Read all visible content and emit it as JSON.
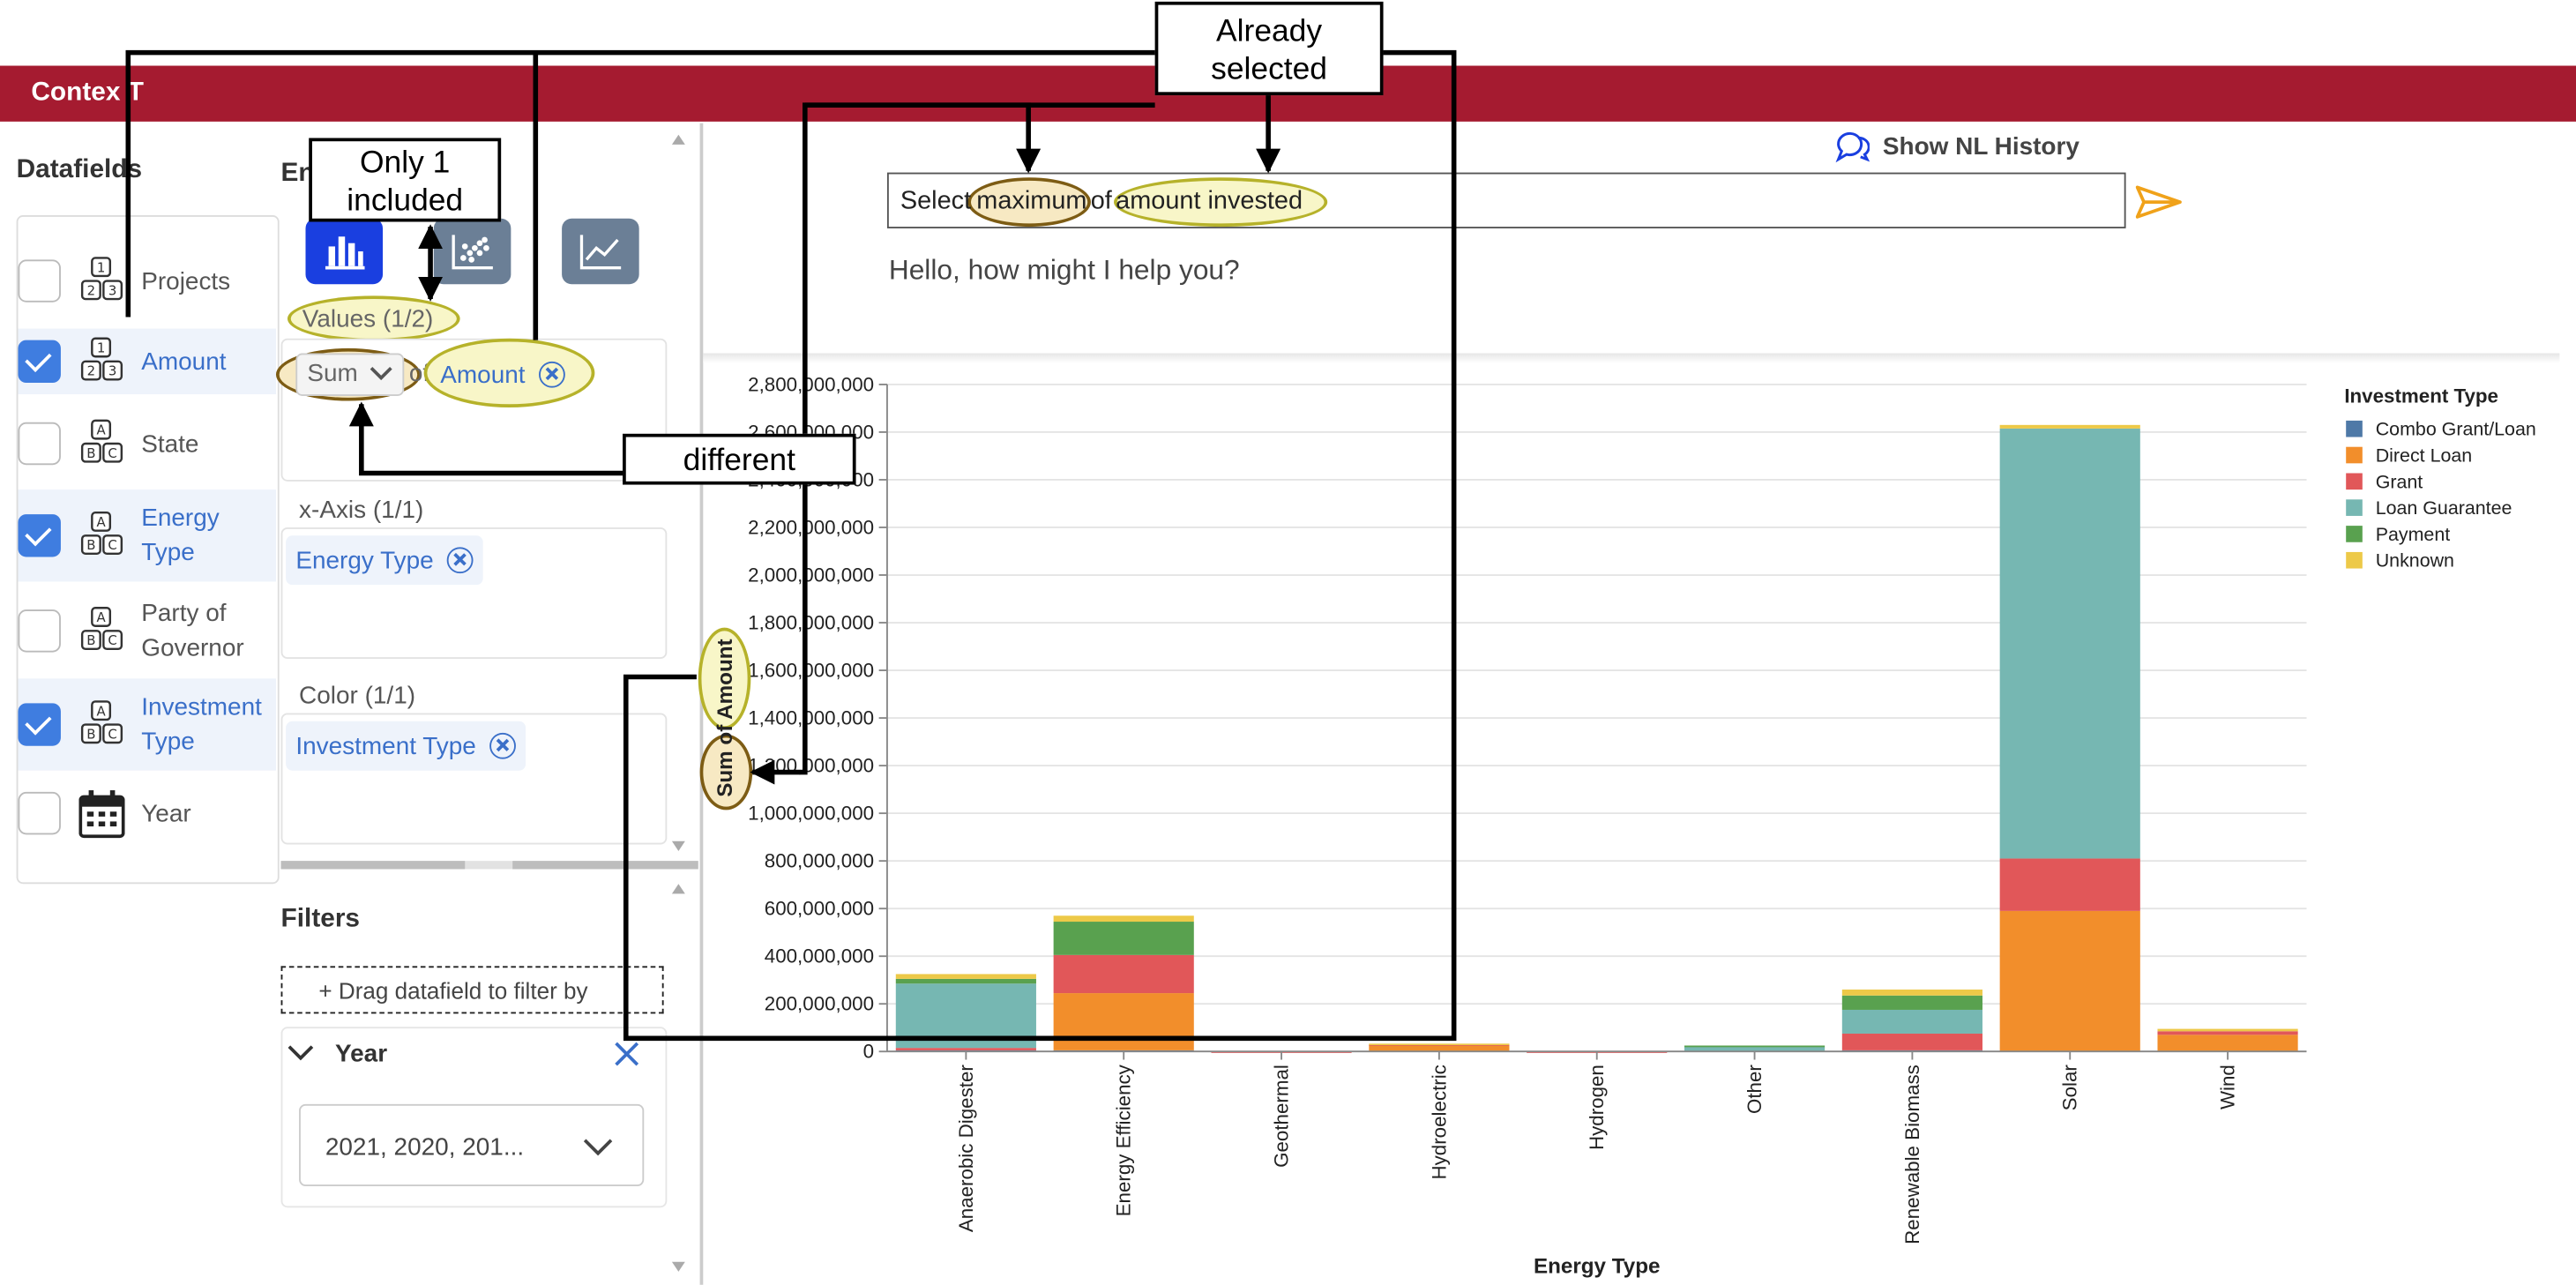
{
  "app": {
    "title": "Contex T"
  },
  "datafields": {
    "heading": "Datafields",
    "items": [
      {
        "label": "Projects",
        "checked": false,
        "icon": "number-blocks-icon"
      },
      {
        "label": "Amount",
        "checked": true,
        "icon": "number-blocks-icon"
      },
      {
        "label": "State",
        "checked": false,
        "icon": "letter-blocks-icon"
      },
      {
        "label": "Energy Type",
        "checked": true,
        "icon": "letter-blocks-icon"
      },
      {
        "label": "Party of Governor",
        "checked": false,
        "icon": "letter-blocks-icon"
      },
      {
        "label": "Investment Type",
        "checked": true,
        "icon": "letter-blocks-icon"
      },
      {
        "label": "Year",
        "checked": false,
        "icon": "calendar-icon"
      }
    ]
  },
  "encoding": {
    "heading_partial": "En",
    "values_label": "Values (1/2)",
    "aggregate": "Sum",
    "of_text": "of",
    "values_field": "Amount",
    "xaxis_label": "x-Axis (1/1)",
    "xaxis_field": "Energy Type",
    "color_label": "Color (1/1)",
    "color_field": "Investment Type"
  },
  "filters": {
    "heading": "Filters",
    "drop_hint": "+ Drag datafield to filter by",
    "year_label": "Year",
    "year_value": "2021, 2020, 201..."
  },
  "nl": {
    "history_button": "Show NL History",
    "query_select": "Select",
    "query_max": "maximum",
    "query_of": "of",
    "query_field": "amount invested",
    "greeting": "Hello, how might I help you?"
  },
  "annotations": {
    "only_one_line1": "Only 1",
    "only_one_line2": "included",
    "already_line1": "Already",
    "already_line2": "selected",
    "different": "different"
  },
  "colors": {
    "topbar": "#a51b30",
    "Combo Grant/Loan": "#4e79a7",
    "Direct Loan": "#f28e2b",
    "Grant": "#e15759",
    "Loan Guarantee": "#76b7b2",
    "Payment": "#59a14f",
    "Unknown": "#edc948"
  },
  "chart_data": {
    "type": "bar",
    "stacked": true,
    "xlabel": "Energy Type",
    "ylabel_agg": "Sum of",
    "ylabel_field": "Amount",
    "ylim": [
      0,
      2800000000
    ],
    "yticks": [
      "0",
      "200,000,000",
      "400,000,000",
      "600,000,000",
      "800,000,000",
      "1,000,000,000",
      "1,200,000,000",
      "1,400,000,000",
      "1,600,000,000",
      "1,800,000,000",
      "2,000,000,000",
      "2,200,000,000",
      "2,400,000,000",
      "2,600,000,000",
      "2,800,000,000"
    ],
    "grid": true,
    "legend_title": "Investment Type",
    "legend_position": "right",
    "categories": [
      "Anaerobic Digester",
      "Energy Efficiency",
      "Geothermal",
      "Hydroelectric",
      "Hydrogen",
      "Other",
      "Renewable Biomass",
      "Solar",
      "Wind"
    ],
    "series": [
      {
        "name": "Combo Grant/Loan",
        "values": [
          5000000,
          5000000,
          0,
          0,
          0,
          0,
          5000000,
          0,
          0
        ]
      },
      {
        "name": "Direct Loan",
        "values": [
          0,
          240000000,
          0,
          25000000,
          0,
          0,
          0,
          590000000,
          70000000
        ]
      },
      {
        "name": "Grant",
        "values": [
          10000000,
          160000000,
          1000000,
          5000000,
          1000000,
          0,
          70000000,
          220000000,
          15000000
        ]
      },
      {
        "name": "Loan Guarantee",
        "values": [
          270000000,
          0,
          0,
          0,
          0,
          20000000,
          100000000,
          1805000000,
          0
        ]
      },
      {
        "name": "Payment",
        "values": [
          20000000,
          140000000,
          0,
          0,
          0,
          5000000,
          60000000,
          0,
          0
        ]
      },
      {
        "name": "Unknown",
        "values": [
          20000000,
          25000000,
          0,
          3000000,
          0,
          0,
          25000000,
          15000000,
          10000000
        ]
      }
    ]
  }
}
